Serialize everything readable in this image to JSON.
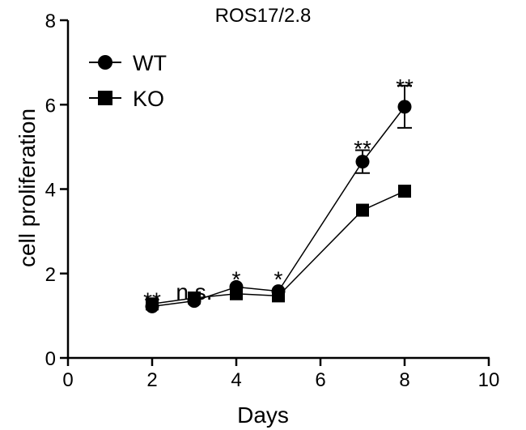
{
  "chart_data": {
    "type": "line",
    "title": "ROS17/2.8",
    "xlabel": "Days",
    "ylabel": "cell proliferation",
    "xlim": [
      0,
      10
    ],
    "ylim": [
      0,
      8
    ],
    "x_ticks": [
      "0",
      "2",
      "4",
      "6",
      "8",
      "10"
    ],
    "y_ticks": [
      "0",
      "2",
      "4",
      "6",
      "8"
    ],
    "grid": false,
    "legend_position": "top-left",
    "x": [
      2,
      3,
      4,
      5,
      7,
      8
    ],
    "series": [
      {
        "name": "WT",
        "marker": "circle",
        "color": "#000000",
        "values": [
          1.22,
          1.35,
          1.68,
          1.58,
          4.65,
          5.95
        ],
        "error": [
          0,
          0,
          0,
          0,
          0.27,
          0.5
        ]
      },
      {
        "name": "KO",
        "marker": "square",
        "color": "#000000",
        "values": [
          1.28,
          1.42,
          1.52,
          1.47,
          3.5,
          3.95
        ],
        "error": [
          0,
          0,
          0,
          0,
          0,
          0
        ]
      }
    ],
    "annotations": [
      {
        "x": 2,
        "y": 1.45,
        "text": "**"
      },
      {
        "x": 3,
        "y": 1.65,
        "text": "n.s."
      },
      {
        "x": 4,
        "y": 1.95,
        "text": "*"
      },
      {
        "x": 5,
        "y": 1.95,
        "text": "*"
      },
      {
        "x": 7,
        "y": 5.05,
        "text": "**"
      },
      {
        "x": 8,
        "y": 6.5,
        "text": "**"
      }
    ]
  }
}
